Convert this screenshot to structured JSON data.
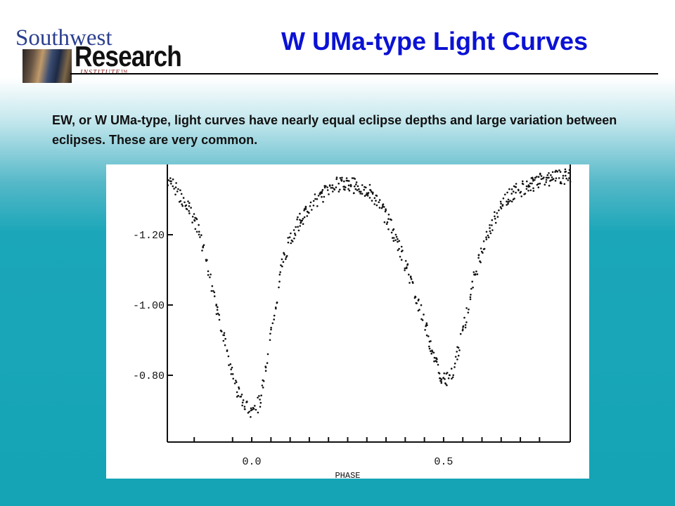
{
  "logo": {
    "line1": "Southwest",
    "line2": "Research",
    "line3": "INSTITUTE™"
  },
  "slide": {
    "title": "W UMa-type Light Curves",
    "body": "EW, or W UMa-type, light curves have nearly equal eclipse depths and large variation between eclipses. These are very common."
  },
  "chart_data": {
    "type": "scatter",
    "title": "",
    "xlabel": "PHASE",
    "ylabel": "",
    "x_ticks": [
      {
        "value": 0.0,
        "label": "0.0"
      },
      {
        "value": 0.5,
        "label": "0.5"
      }
    ],
    "y_ticks": [
      {
        "value": 1.2,
        "label": "-1.20"
      },
      {
        "value": 1.0,
        "label": "-1.00"
      },
      {
        "value": 0.8,
        "label": "-0.80"
      }
    ],
    "xlim": [
      -0.22,
      0.83
    ],
    "ylim": [
      0.61,
      1.4
    ],
    "curve_points": [
      [
        -0.22,
        1.36
      ],
      [
        -0.2,
        1.33
      ],
      [
        -0.18,
        1.3
      ],
      [
        -0.16,
        1.27
      ],
      [
        -0.14,
        1.22
      ],
      [
        -0.12,
        1.14
      ],
      [
        -0.1,
        1.03
      ],
      [
        -0.08,
        0.94
      ],
      [
        -0.06,
        0.85
      ],
      [
        -0.04,
        0.76
      ],
      [
        -0.02,
        0.71
      ],
      [
        0.0,
        0.7
      ],
      [
        0.02,
        0.72
      ],
      [
        0.04,
        0.85
      ],
      [
        0.06,
        0.99
      ],
      [
        0.08,
        1.12
      ],
      [
        0.1,
        1.19
      ],
      [
        0.12,
        1.23
      ],
      [
        0.15,
        1.28
      ],
      [
        0.18,
        1.31
      ],
      [
        0.21,
        1.34
      ],
      [
        0.25,
        1.345
      ],
      [
        0.28,
        1.335
      ],
      [
        0.31,
        1.32
      ],
      [
        0.33,
        1.29
      ],
      [
        0.36,
        1.23
      ],
      [
        0.39,
        1.15
      ],
      [
        0.42,
        1.05
      ],
      [
        0.45,
        0.95
      ],
      [
        0.47,
        0.87
      ],
      [
        0.49,
        0.81
      ],
      [
        0.5,
        0.785
      ],
      [
        0.52,
        0.8
      ],
      [
        0.55,
        0.92
      ],
      [
        0.58,
        1.08
      ],
      [
        0.61,
        1.19
      ],
      [
        0.64,
        1.26
      ],
      [
        0.67,
        1.31
      ],
      [
        0.7,
        1.33
      ],
      [
        0.74,
        1.35
      ],
      [
        0.78,
        1.36
      ],
      [
        0.83,
        1.37
      ]
    ],
    "grid": false,
    "legend": "none"
  }
}
